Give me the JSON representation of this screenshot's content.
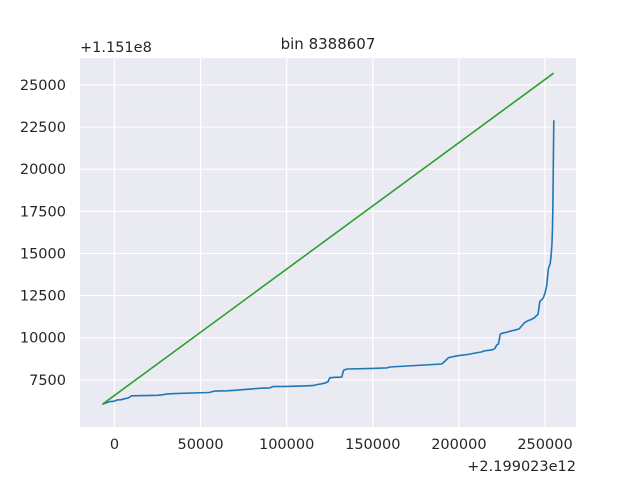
{
  "chart_data": {
    "type": "line",
    "title": "bin 8388607",
    "xlabel": "",
    "ylabel": "",
    "x_offset_label": "+2.199023e12",
    "y_offset_label": "+1.151e8",
    "xlim": [
      -20000,
      268000
    ],
    "ylim": [
      4700,
      26600
    ],
    "x_ticks": [
      0,
      50000,
      100000,
      150000,
      200000,
      250000
    ],
    "x_tick_labels": [
      "0",
      "50000",
      "100000",
      "150000",
      "200000",
      "250000"
    ],
    "y_ticks": [
      7500,
      10000,
      12500,
      15000,
      17500,
      20000,
      22500,
      25000
    ],
    "y_tick_labels": [
      "7500",
      "10000",
      "12500",
      "15000",
      "17500",
      "20000",
      "22500",
      "25000"
    ],
    "grid": true,
    "series": [
      {
        "color": "#1f77b4",
        "x": [
          -7000,
          -3000,
          0,
          1500,
          4000,
          6000,
          8000,
          10000,
          25000,
          28000,
          30000,
          35000,
          45000,
          55000,
          58000,
          65000,
          70000,
          75000,
          80000,
          85000,
          90000,
          92000,
          100000,
          105000,
          110000,
          115000,
          118000,
          120000,
          122000,
          124000,
          125000,
          128000,
          130000,
          132000,
          133000,
          135000,
          150000,
          158000,
          160000,
          165000,
          170000,
          180000,
          190000,
          192000,
          194000,
          196000,
          198000,
          200000,
          205000,
          210000,
          213000,
          215000,
          218000,
          220000,
          221000,
          222000,
          223000,
          224000,
          225000,
          228000,
          230000,
          232000,
          235000,
          238000,
          240000,
          242000,
          244000,
          246000,
          247000,
          248000,
          249000,
          250000,
          251000,
          252000,
          253000,
          253500,
          254000,
          254300,
          254500,
          254700,
          254900,
          255100
        ],
        "y": [
          6050,
          6200,
          6230,
          6300,
          6320,
          6380,
          6420,
          6550,
          6580,
          6610,
          6650,
          6680,
          6720,
          6750,
          6830,
          6850,
          6880,
          6920,
          6960,
          7000,
          7020,
          7100,
          7110,
          7120,
          7140,
          7160,
          7220,
          7260,
          7300,
          7380,
          7620,
          7650,
          7650,
          7670,
          8060,
          8140,
          8180,
          8210,
          8260,
          8290,
          8320,
          8380,
          8440,
          8620,
          8820,
          8860,
          8900,
          8940,
          9000,
          9100,
          9150,
          9220,
          9260,
          9300,
          9380,
          9580,
          9630,
          10200,
          10260,
          10330,
          10390,
          10440,
          10520,
          10880,
          11000,
          11080,
          11200,
          11400,
          12150,
          12250,
          12360,
          12640,
          13100,
          14100,
          14400,
          14800,
          15500,
          16300,
          17500,
          19000,
          20800,
          22900
        ]
      },
      {
        "color": "#2ca02c",
        "x": [
          -7000,
          255000
        ],
        "y": [
          6050,
          25700
        ]
      }
    ]
  }
}
